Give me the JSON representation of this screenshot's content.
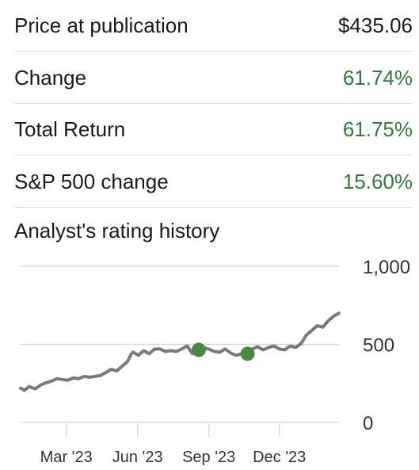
{
  "stats": [
    {
      "label": "Price at publication",
      "value": "$435.06",
      "positive": false
    },
    {
      "label": "Change",
      "value": "61.74%",
      "positive": true
    },
    {
      "label": "Total Return",
      "value": "61.75%",
      "positive": true
    },
    {
      "label": "S&P 500 change",
      "value": "15.60%",
      "positive": true
    }
  ],
  "chart_title": "Analyst's rating history",
  "colors": {
    "positive": "#2e7d3a",
    "line": "#7a7a7a",
    "marker": "#4a8a3c",
    "grid": "#d9d9d9"
  },
  "chart_data": {
    "type": "line",
    "yticks": [
      "0",
      "500",
      "1,000"
    ],
    "ytick_values": [
      0,
      500,
      1000
    ],
    "xticks": [
      "Mar '23",
      "Jun '23",
      "Sep '23",
      "Dec '23"
    ],
    "xtick_dates": [
      "2023-03-01",
      "2023-06-01",
      "2023-09-01",
      "2023-12-01"
    ],
    "ylim": [
      0,
      1000
    ],
    "xlim": [
      "2023-01-01",
      "2024-02-16"
    ],
    "grid": true,
    "series": [
      {
        "x": [
          "2023-01-01",
          "2023-01-06",
          "2023-01-12",
          "2023-01-20",
          "2023-01-27",
          "2023-02-03",
          "2023-02-10",
          "2023-02-17",
          "2023-02-24",
          "2023-03-03",
          "2023-03-10",
          "2023-03-17",
          "2023-03-24",
          "2023-03-31",
          "2023-04-07",
          "2023-04-14",
          "2023-04-21",
          "2023-04-28",
          "2023-05-05",
          "2023-05-12",
          "2023-05-19",
          "2023-05-24",
          "2023-05-26",
          "2023-06-02",
          "2023-06-09",
          "2023-06-16",
          "2023-06-23",
          "2023-06-30",
          "2023-07-07",
          "2023-07-14",
          "2023-07-21",
          "2023-07-28",
          "2023-08-04",
          "2023-08-11",
          "2023-08-18",
          "2023-08-25",
          "2023-09-01",
          "2023-09-08",
          "2023-09-15",
          "2023-09-22",
          "2023-09-29",
          "2023-10-06",
          "2023-10-13",
          "2023-10-20",
          "2023-10-27",
          "2023-11-03",
          "2023-11-10",
          "2023-11-17",
          "2023-11-24",
          "2023-12-01",
          "2023-12-08",
          "2023-12-15",
          "2023-12-22",
          "2023-12-29",
          "2024-01-05",
          "2024-01-12",
          "2024-01-19",
          "2024-01-26",
          "2024-02-02",
          "2024-02-09",
          "2024-02-16"
        ],
        "values": [
          220,
          205,
          230,
          215,
          240,
          255,
          265,
          280,
          275,
          270,
          285,
          280,
          295,
          290,
          295,
          300,
          320,
          340,
          330,
          360,
          390,
          440,
          450,
          430,
          460,
          440,
          470,
          470,
          455,
          460,
          455,
          470,
          490,
          440,
          470,
          480,
          470,
          455,
          450,
          470,
          445,
          430,
          440,
          455,
          470,
          485,
          465,
          480,
          490,
          470,
          465,
          490,
          480,
          505,
          560,
          590,
          620,
          610,
          650,
          680,
          700
        ]
      }
    ],
    "markers": [
      {
        "x": "2023-08-19",
        "y": 465
      },
      {
        "x": "2023-10-21",
        "y": 440
      }
    ]
  }
}
